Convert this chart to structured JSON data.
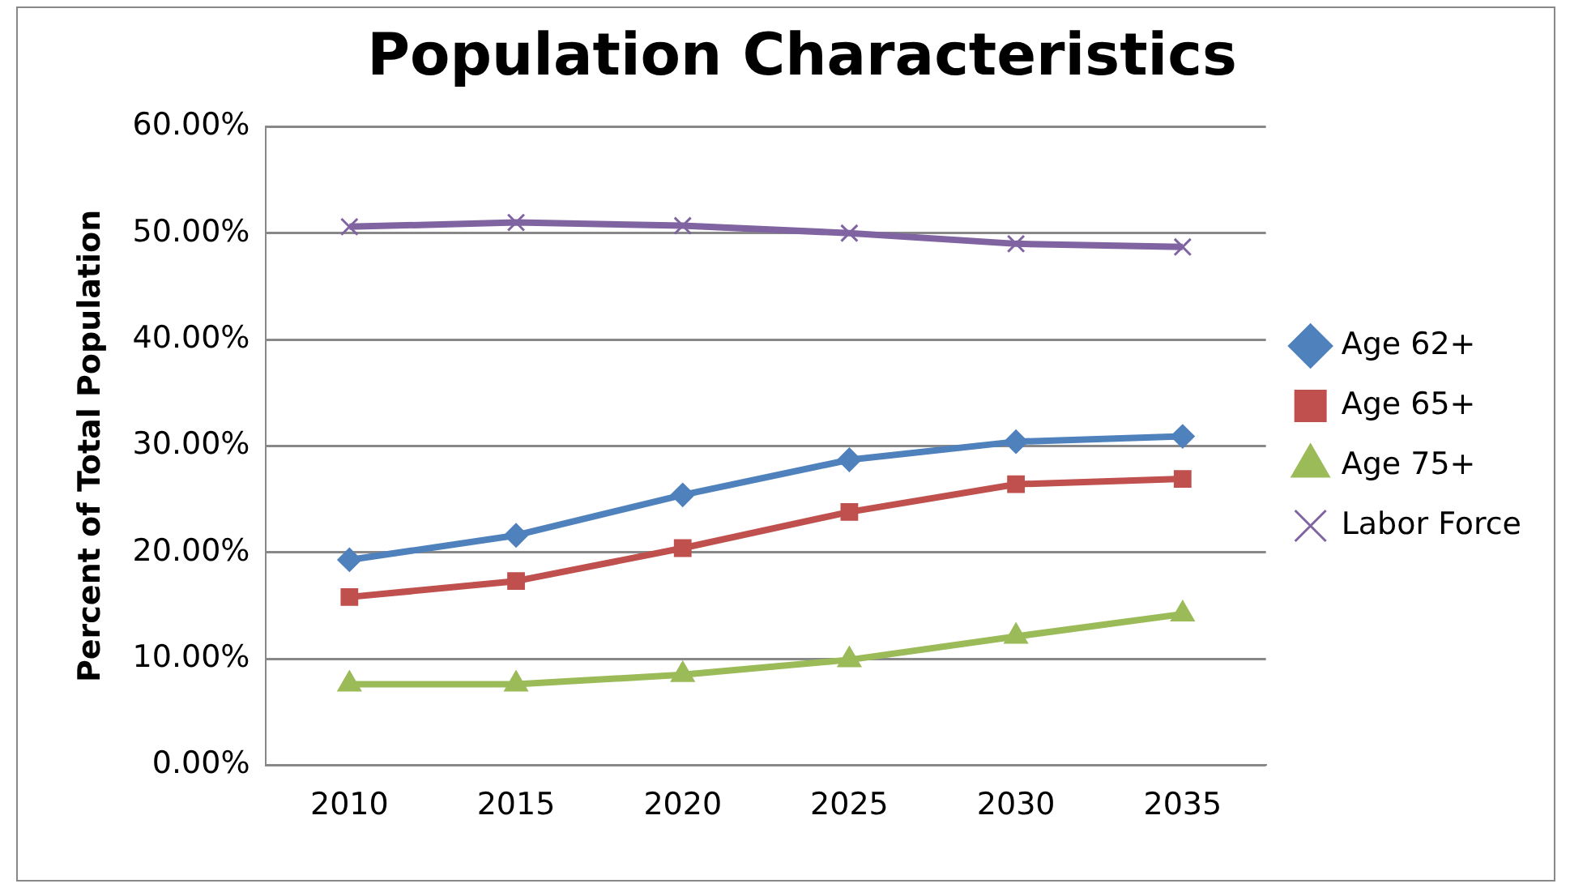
{
  "chart_data": {
    "type": "line",
    "title": "Population Characteristics",
    "ylabel": "Percent of Total Population",
    "categories": [
      "2010",
      "2015",
      "2020",
      "2025",
      "2030",
      "2035"
    ],
    "series": [
      {
        "name": "Age 62+",
        "color": "#4f81bd",
        "marker": "diamond",
        "values": [
          19.3,
          21.6,
          25.4,
          28.7,
          30.4,
          30.9
        ]
      },
      {
        "name": "Age 65+",
        "color": "#c0504d",
        "marker": "square",
        "values": [
          15.8,
          17.3,
          20.4,
          23.8,
          26.4,
          26.9
        ]
      },
      {
        "name": "Age 75+",
        "color": "#9bbb59",
        "marker": "triangle",
        "values": [
          7.6,
          7.6,
          8.5,
          9.9,
          12.1,
          14.2
        ]
      },
      {
        "name": "Labor Force",
        "color": "#8064a2",
        "marker": "cross",
        "values": [
          50.6,
          51.0,
          50.7,
          50.0,
          49.0,
          48.7
        ]
      }
    ],
    "ylim": [
      0,
      60
    ],
    "yticks": [
      {
        "value": 0,
        "label": "0.00%"
      },
      {
        "value": 10,
        "label": "10.00%"
      },
      {
        "value": 20,
        "label": "20.00%"
      },
      {
        "value": 30,
        "label": "30.00%"
      },
      {
        "value": 40,
        "label": "40.00%"
      },
      {
        "value": 50,
        "label": "50.00%"
      },
      {
        "value": 60,
        "label": "60.00%"
      }
    ],
    "grid": "y",
    "legend": "right"
  }
}
